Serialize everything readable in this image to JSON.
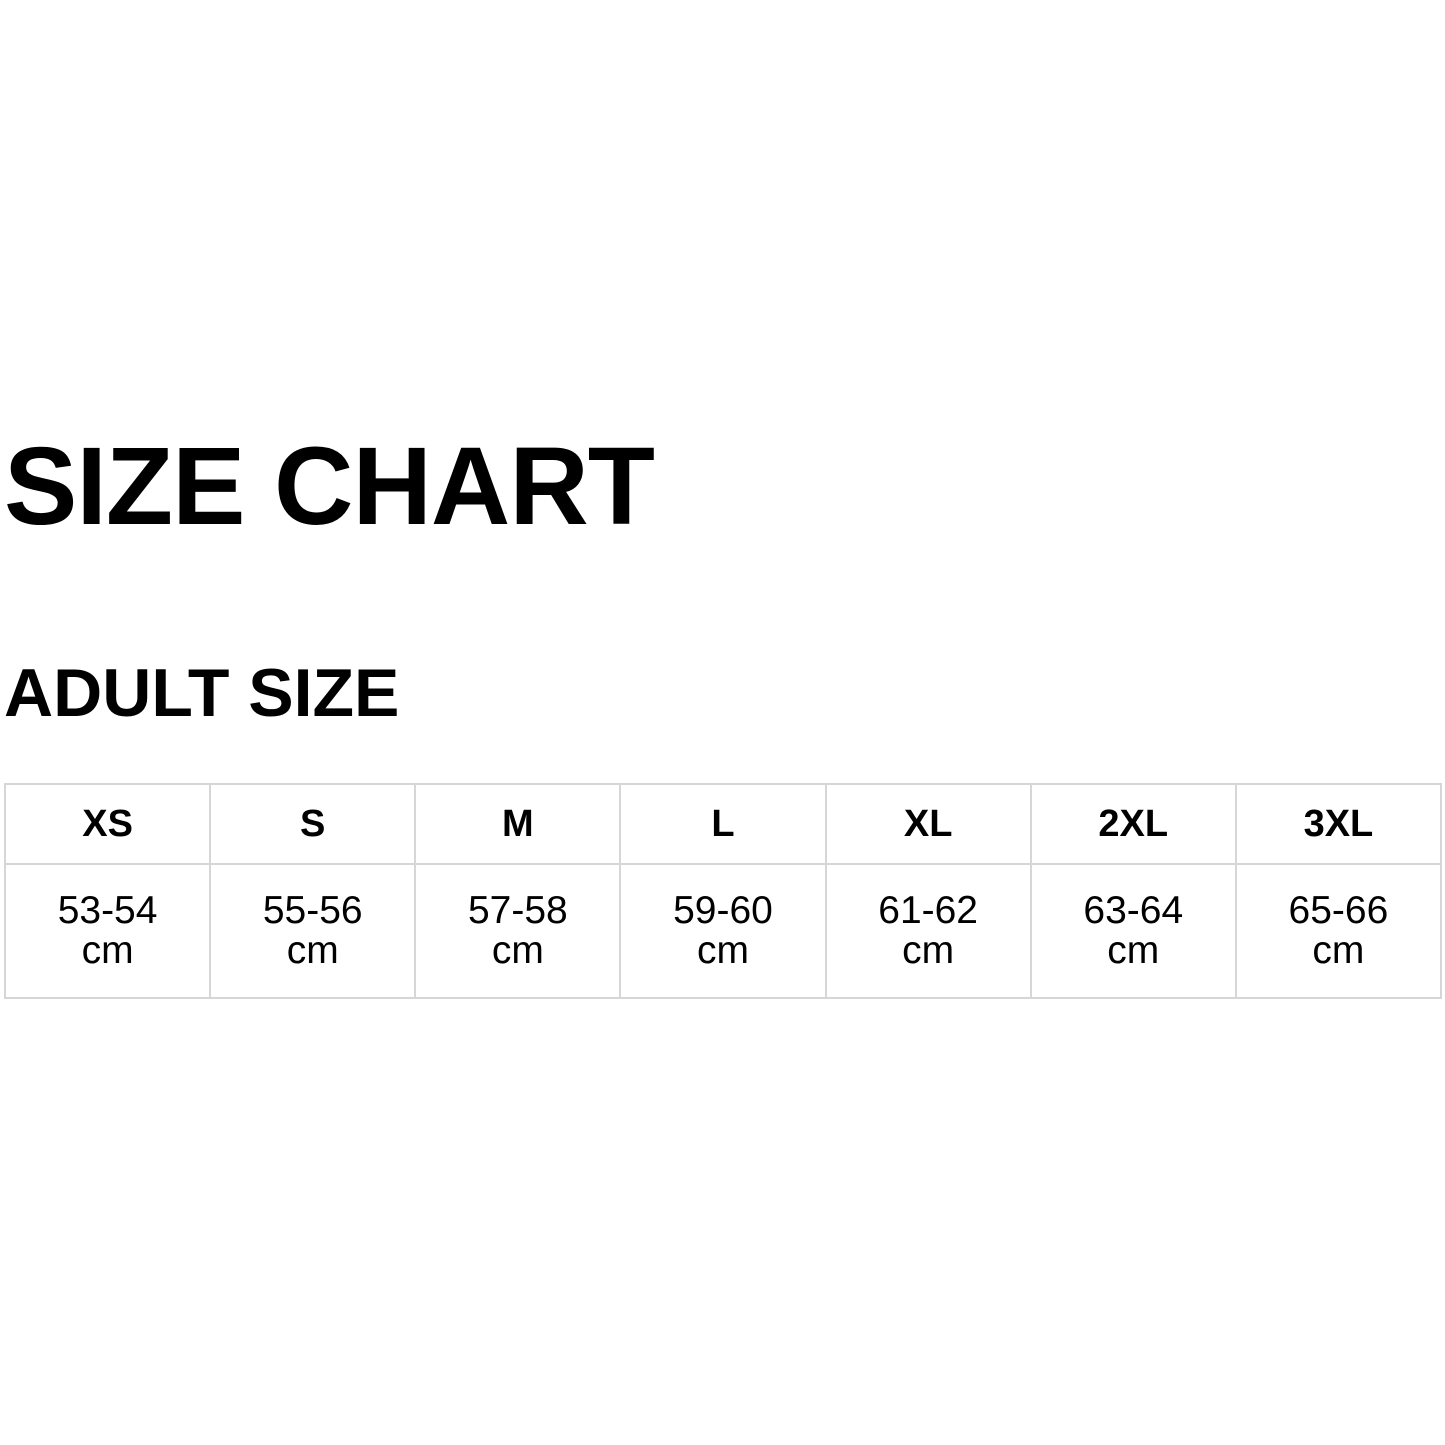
{
  "title": "SIZE CHART",
  "subtitle": "ADULT SIZE",
  "table": {
    "headers": [
      "XS",
      "S",
      "M",
      "L",
      "XL",
      "2XL",
      "3XL"
    ],
    "values": [
      "53-54",
      "55-56",
      "57-58",
      "59-60",
      "61-62",
      "63-64",
      "65-66"
    ],
    "unit": "cm"
  }
}
